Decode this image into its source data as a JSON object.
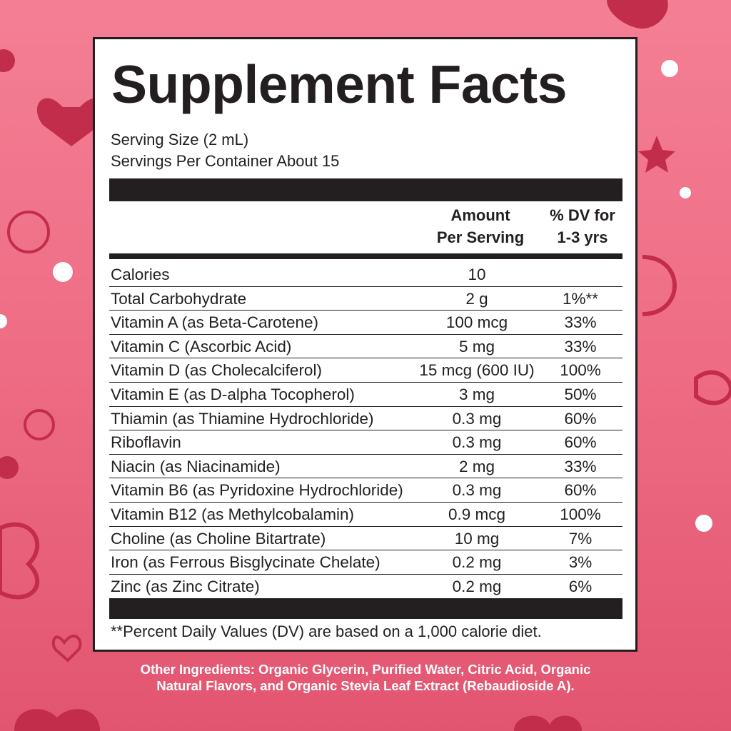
{
  "title": "Supplement Facts",
  "serving_size": "Serving Size (2 mL)",
  "servings_per_container": "Servings Per Container About 15",
  "headers": {
    "amount_line1": "Amount",
    "amount_line2": "Per Serving",
    "dv_line1": "% DV for",
    "dv_line2": "1-3 yrs"
  },
  "rows": [
    {
      "name": "Calories",
      "amount": "10",
      "dv": ""
    },
    {
      "name": "Total Carbohydrate",
      "amount": "2 g",
      "dv": "1%**"
    },
    {
      "name": "Vitamin A (as Beta-Carotene)",
      "amount": "100 mcg",
      "dv": "33%"
    },
    {
      "name": "Vitamin C (Ascorbic Acid)",
      "amount": "5 mg",
      "dv": "33%"
    },
    {
      "name": "Vitamin D (as Cholecalciferol)",
      "amount": "15 mcg (600 IU)",
      "dv": "100%"
    },
    {
      "name": "Vitamin E (as D-alpha Tocopherol)",
      "amount": "3 mg",
      "dv": "50%"
    },
    {
      "name": "Thiamin (as Thiamine Hydrochloride)",
      "amount": "0.3 mg",
      "dv": "60%"
    },
    {
      "name": "Riboflavin",
      "amount": "0.3 mg",
      "dv": "60%"
    },
    {
      "name": "Niacin (as Niacinamide)",
      "amount": "2 mg",
      "dv": "33%"
    },
    {
      "name": "Vitamin B6 (as Pyridoxine Hydrochloride)",
      "amount": "0.3 mg",
      "dv": "60%"
    },
    {
      "name": "Vitamin B12 (as Methylcobalamin)",
      "amount": "0.9 mcg",
      "dv": "100%"
    },
    {
      "name": "Choline (as Choline Bitartrate)",
      "amount": "10 mg",
      "dv": "7%"
    },
    {
      "name": "Iron (as Ferrous Bisglycinate Chelate)",
      "amount": "0.2 mg",
      "dv": "3%"
    },
    {
      "name": "Zinc (as Zinc Citrate)",
      "amount": "0.2 mg",
      "dv": "6%"
    }
  ],
  "footnote": "**Percent Daily Values (DV) are based on a 1,000 calorie diet.",
  "other_ingredients_line1": "Other Ingredients: Organic Glycerin, Purified Water, Citric Acid, Organic",
  "other_ingredients_line2": "Natural Flavors, and Organic Stevia Leaf Extract (Rebaudioside A).",
  "colors": {
    "background_top": "#f47f95",
    "background_bottom": "#e25570",
    "ink": "#231f20",
    "decor": "#c0304f"
  }
}
